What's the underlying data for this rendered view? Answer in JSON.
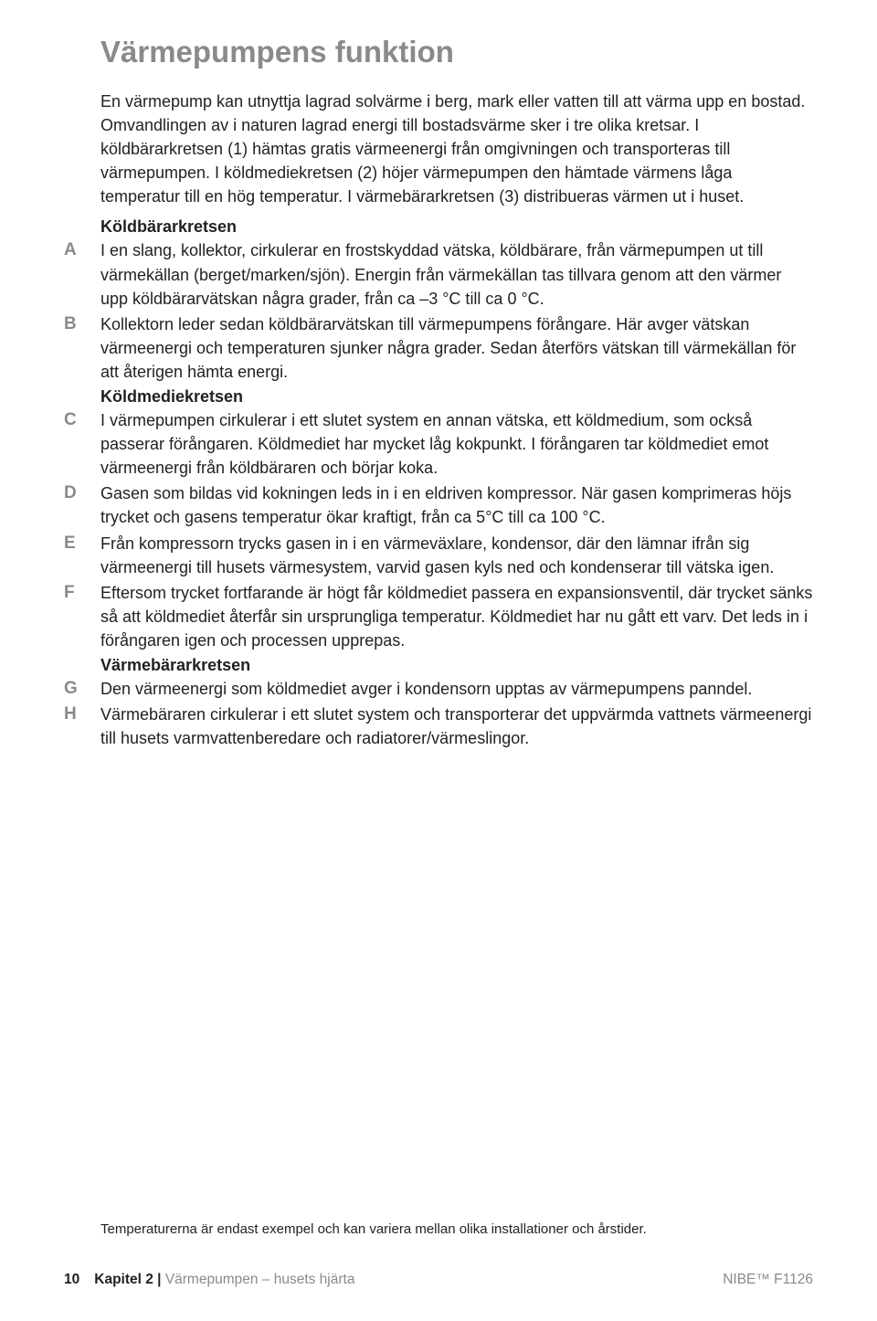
{
  "title": "Värmepumpens funktion",
  "intro": "En värmepump kan utnyttja lagrad solvärme i berg, mark eller vatten till att värma upp en bostad. Omvandlingen av i naturen lagrad energi till bostadsvärme sker i tre olika kretsar. I köldbärarkretsen (1) hämtas gratis värmeenergi från omgivningen och transporteras till värmepumpen. I köldmediekretsen (2) höjer värmepumpen den hämtade värmens låga temperatur till en hög temperatur. I värmebärarkretsen (3) distribueras värmen ut i huset.",
  "sections": [
    {
      "subtitle": "Köldbärarkretsen",
      "items": [
        {
          "letter": "A",
          "text": "I en slang, kollektor, cirkulerar en frostskyddad vätska, köldbärare, från värmepumpen ut till värmekällan (berget/marken/sjön). Energin från värmekällan tas tillvara genom att den värmer upp köldbärarvätskan några grader, från ca –3 °C till ca 0 °C."
        },
        {
          "letter": "B",
          "text": "Kollektorn leder sedan köldbärarvätskan till värmepumpens förångare. Här avger vätskan värmeenergi och temperaturen sjunker några grader. Sedan återförs vätskan till värmekällan för att återigen hämta energi."
        }
      ]
    },
    {
      "subtitle": "Köldmediekretsen",
      "items": [
        {
          "letter": "C",
          "text": "I värmepumpen cirkulerar i ett slutet system en annan vätska, ett köldmedium, som också passerar förångaren. Köldmediet har mycket låg kokpunkt. I förångaren tar köldmediet emot värmeenergi från köldbäraren och börjar koka."
        },
        {
          "letter": "D",
          "text": "Gasen som bildas vid kokningen leds in i en eldriven kompressor. När gasen komprimeras höjs trycket och gasens temperatur ökar kraftigt, från ca 5°C till ca 100 °C."
        },
        {
          "letter": "E",
          "text": "Från kompressorn trycks gasen in i en värmeväxlare, kondensor, där den lämnar ifrån sig värmeenergi till husets värmesystem, varvid gasen kyls ned och kondenserar till vätska igen."
        },
        {
          "letter": "F",
          "text": "Eftersom trycket fortfarande är högt får köldmediet passera en expansionsventil, där trycket sänks så att köldmediet återfår sin ursprungliga temperatur. Köldmediet har nu gått ett varv. Det leds in i förångaren igen och processen upprepas."
        }
      ]
    },
    {
      "subtitle": "Värmebärarkretsen",
      "items": [
        {
          "letter": "G",
          "text": "Den värmeenergi som köldmediet avger i kondensorn upptas av värmepumpens panndel."
        },
        {
          "letter": "H",
          "text": "Värmebäraren cirkulerar i ett slutet system och transporterar det uppvärmda vattnets värmeenergi till husets varmvattenberedare och radiatorer/värmeslingor."
        }
      ]
    }
  ],
  "footnote": "Temperaturerna är endast exempel och kan variera mellan olika installationer och årstider.",
  "footer": {
    "page": "10",
    "chapter_label": "Kapitel 2 |",
    "chapter_name": "Värmepumpen – husets hjärta",
    "product": "NIBE™ F1126"
  },
  "colors": {
    "heading_gray": "#888a8c",
    "text": "#231f20",
    "background": "#ffffff"
  },
  "typography": {
    "title_fontsize": 33,
    "body_fontsize": 18,
    "footnote_fontsize": 15,
    "footer_fontsize": 15.5
  }
}
